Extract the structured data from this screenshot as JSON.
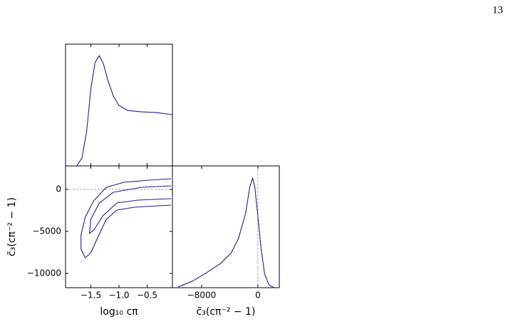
{
  "page_number": "13",
  "chart_data": [
    {
      "type": "density",
      "color": "#1c1c9e",
      "x": [
        -1.75,
        -1.66,
        -1.575,
        -1.5,
        -1.425,
        -1.35,
        -1.275,
        -1.2,
        -1.1,
        -1.0,
        -0.85,
        -0.6,
        -0.35,
        -0.05
      ],
      "values": [
        0,
        0.064,
        0.28,
        0.635,
        0.85,
        0.906,
        0.836,
        0.708,
        0.573,
        0.497,
        0.456,
        0.444,
        0.439,
        0.421
      ],
      "xlim": [
        -1.95,
        -0.05
      ],
      "xticks": [
        -1.5,
        -1.0,
        -0.5
      ],
      "ylim": [
        0,
        1
      ]
    },
    {
      "type": "contour",
      "color": "#1c1c9e",
      "xlabel": "log₁₀ cπ",
      "ylabel": "c̃₃(cπ⁻² − 1)",
      "contours": [
        {
          "x": [
            -0.075,
            -0.475,
            -0.9125,
            -1.225,
            -1.45,
            -1.6,
            -1.675,
            -1.675,
            -1.6,
            -1.5,
            -1.375,
            -1.225,
            -1.0375,
            -0.725,
            -0.075
          ],
          "y": [
            1274,
            1104,
            850,
            256,
            -1355,
            -3306,
            -5426,
            -7122,
            -8139,
            -7546,
            -5680,
            -3560,
            -2458,
            -2118,
            -1864
          ]
        },
        {
          "x": [
            -0.075,
            -0.6,
            -1.1,
            -1.35,
            -1.5,
            -1.525,
            -1.4375,
            -1.2875,
            -1.0375,
            -0.6625,
            -0.075
          ],
          "y": [
            426,
            256,
            -338,
            -1610,
            -3560,
            -5256,
            -4747,
            -3136,
            -1610,
            -1270,
            -1100
          ]
        }
      ],
      "hline": 0,
      "xlim": [
        -1.95,
        -0.05
      ],
      "xticks": [
        {
          "value": -1.5,
          "label": "−1.5"
        },
        {
          "value": -1.0,
          "label": "−1.0"
        },
        {
          "value": -0.5,
          "label": "−0.5"
        }
      ],
      "ylim": [
        -11700,
        2800
      ],
      "yticks": [
        0,
        {
          "value": -5000,
          "label": "−5000"
        },
        {
          "value": -10000,
          "label": "−10000"
        }
      ]
    },
    {
      "type": "density",
      "color": "#1c1c9e",
      "xlabel": "c̃₃(cπ⁻² − 1)",
      "x": [
        -11340,
        -9320,
        -7300,
        -5280,
        -3770,
        -2760,
        -1750,
        -1140,
        -740,
        -440,
        -30,
        470,
        970,
        1580,
        2290
      ],
      "values": [
        0.006,
        0.053,
        0.123,
        0.2,
        0.287,
        0.404,
        0.608,
        0.83,
        0.9,
        0.83,
        0.608,
        0.316,
        0.111,
        0.023,
        0
      ],
      "vline": 0,
      "xlim": [
        -12150,
        3050
      ],
      "xticks": [
        {
          "value": -8000,
          "label": "−8000"
        },
        0
      ],
      "ylim": [
        0,
        1
      ]
    }
  ]
}
